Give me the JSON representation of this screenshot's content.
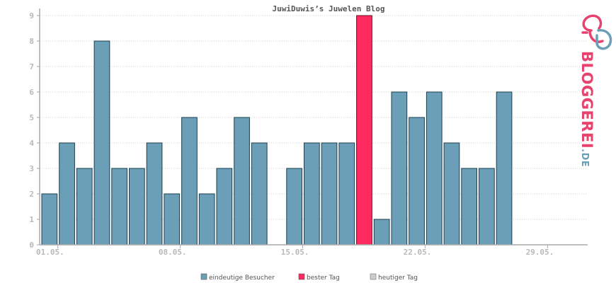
{
  "chart_data": {
    "type": "bar",
    "title": "JuwiDuwis’s Juwelen Blog",
    "days": [
      1,
      2,
      3,
      4,
      5,
      6,
      7,
      8,
      9,
      10,
      11,
      12,
      13,
      14,
      15,
      16,
      17,
      18,
      19,
      20,
      21,
      22,
      23,
      24,
      25,
      26,
      27,
      28,
      29,
      30,
      31
    ],
    "values": [
      2,
      4,
      3,
      8,
      3,
      3,
      4,
      2,
      5,
      2,
      3,
      5,
      4,
      0,
      3,
      4,
      4,
      4,
      9,
      1,
      6,
      5,
      6,
      4,
      3,
      3,
      6,
      0,
      0,
      0,
      0
    ],
    "highlight_day": 19,
    "x_tick_labels": [
      {
        "day": 1,
        "label": "01.05."
      },
      {
        "day": 8,
        "label": "08.05."
      },
      {
        "day": 15,
        "label": "15.05."
      },
      {
        "day": 22,
        "label": "22.05."
      },
      {
        "day": 29,
        "label": "29.05."
      }
    ],
    "y_ticks": [
      0,
      1,
      2,
      3,
      4,
      5,
      6,
      7,
      8,
      9
    ],
    "ylim": [
      0,
      9
    ],
    "grid": true,
    "legend_placement": "bottom-center",
    "legend": [
      {
        "label": "eindeutige Besucher",
        "color": "#6a9fb7"
      },
      {
        "label": "bester Tag",
        "color": "#ff2a5f"
      },
      {
        "label": "heutiger Tag",
        "color": "#cccccc"
      }
    ],
    "colors": {
      "bar": "#6a9fb7",
      "best": "#ff2a5f",
      "bar_stroke": "#1f3f4f"
    }
  },
  "logo": {
    "brand": "BLOGGEREI",
    "tld": ".DE",
    "color_brand": "#e8436f",
    "color_tld": "#6a9fb7"
  }
}
